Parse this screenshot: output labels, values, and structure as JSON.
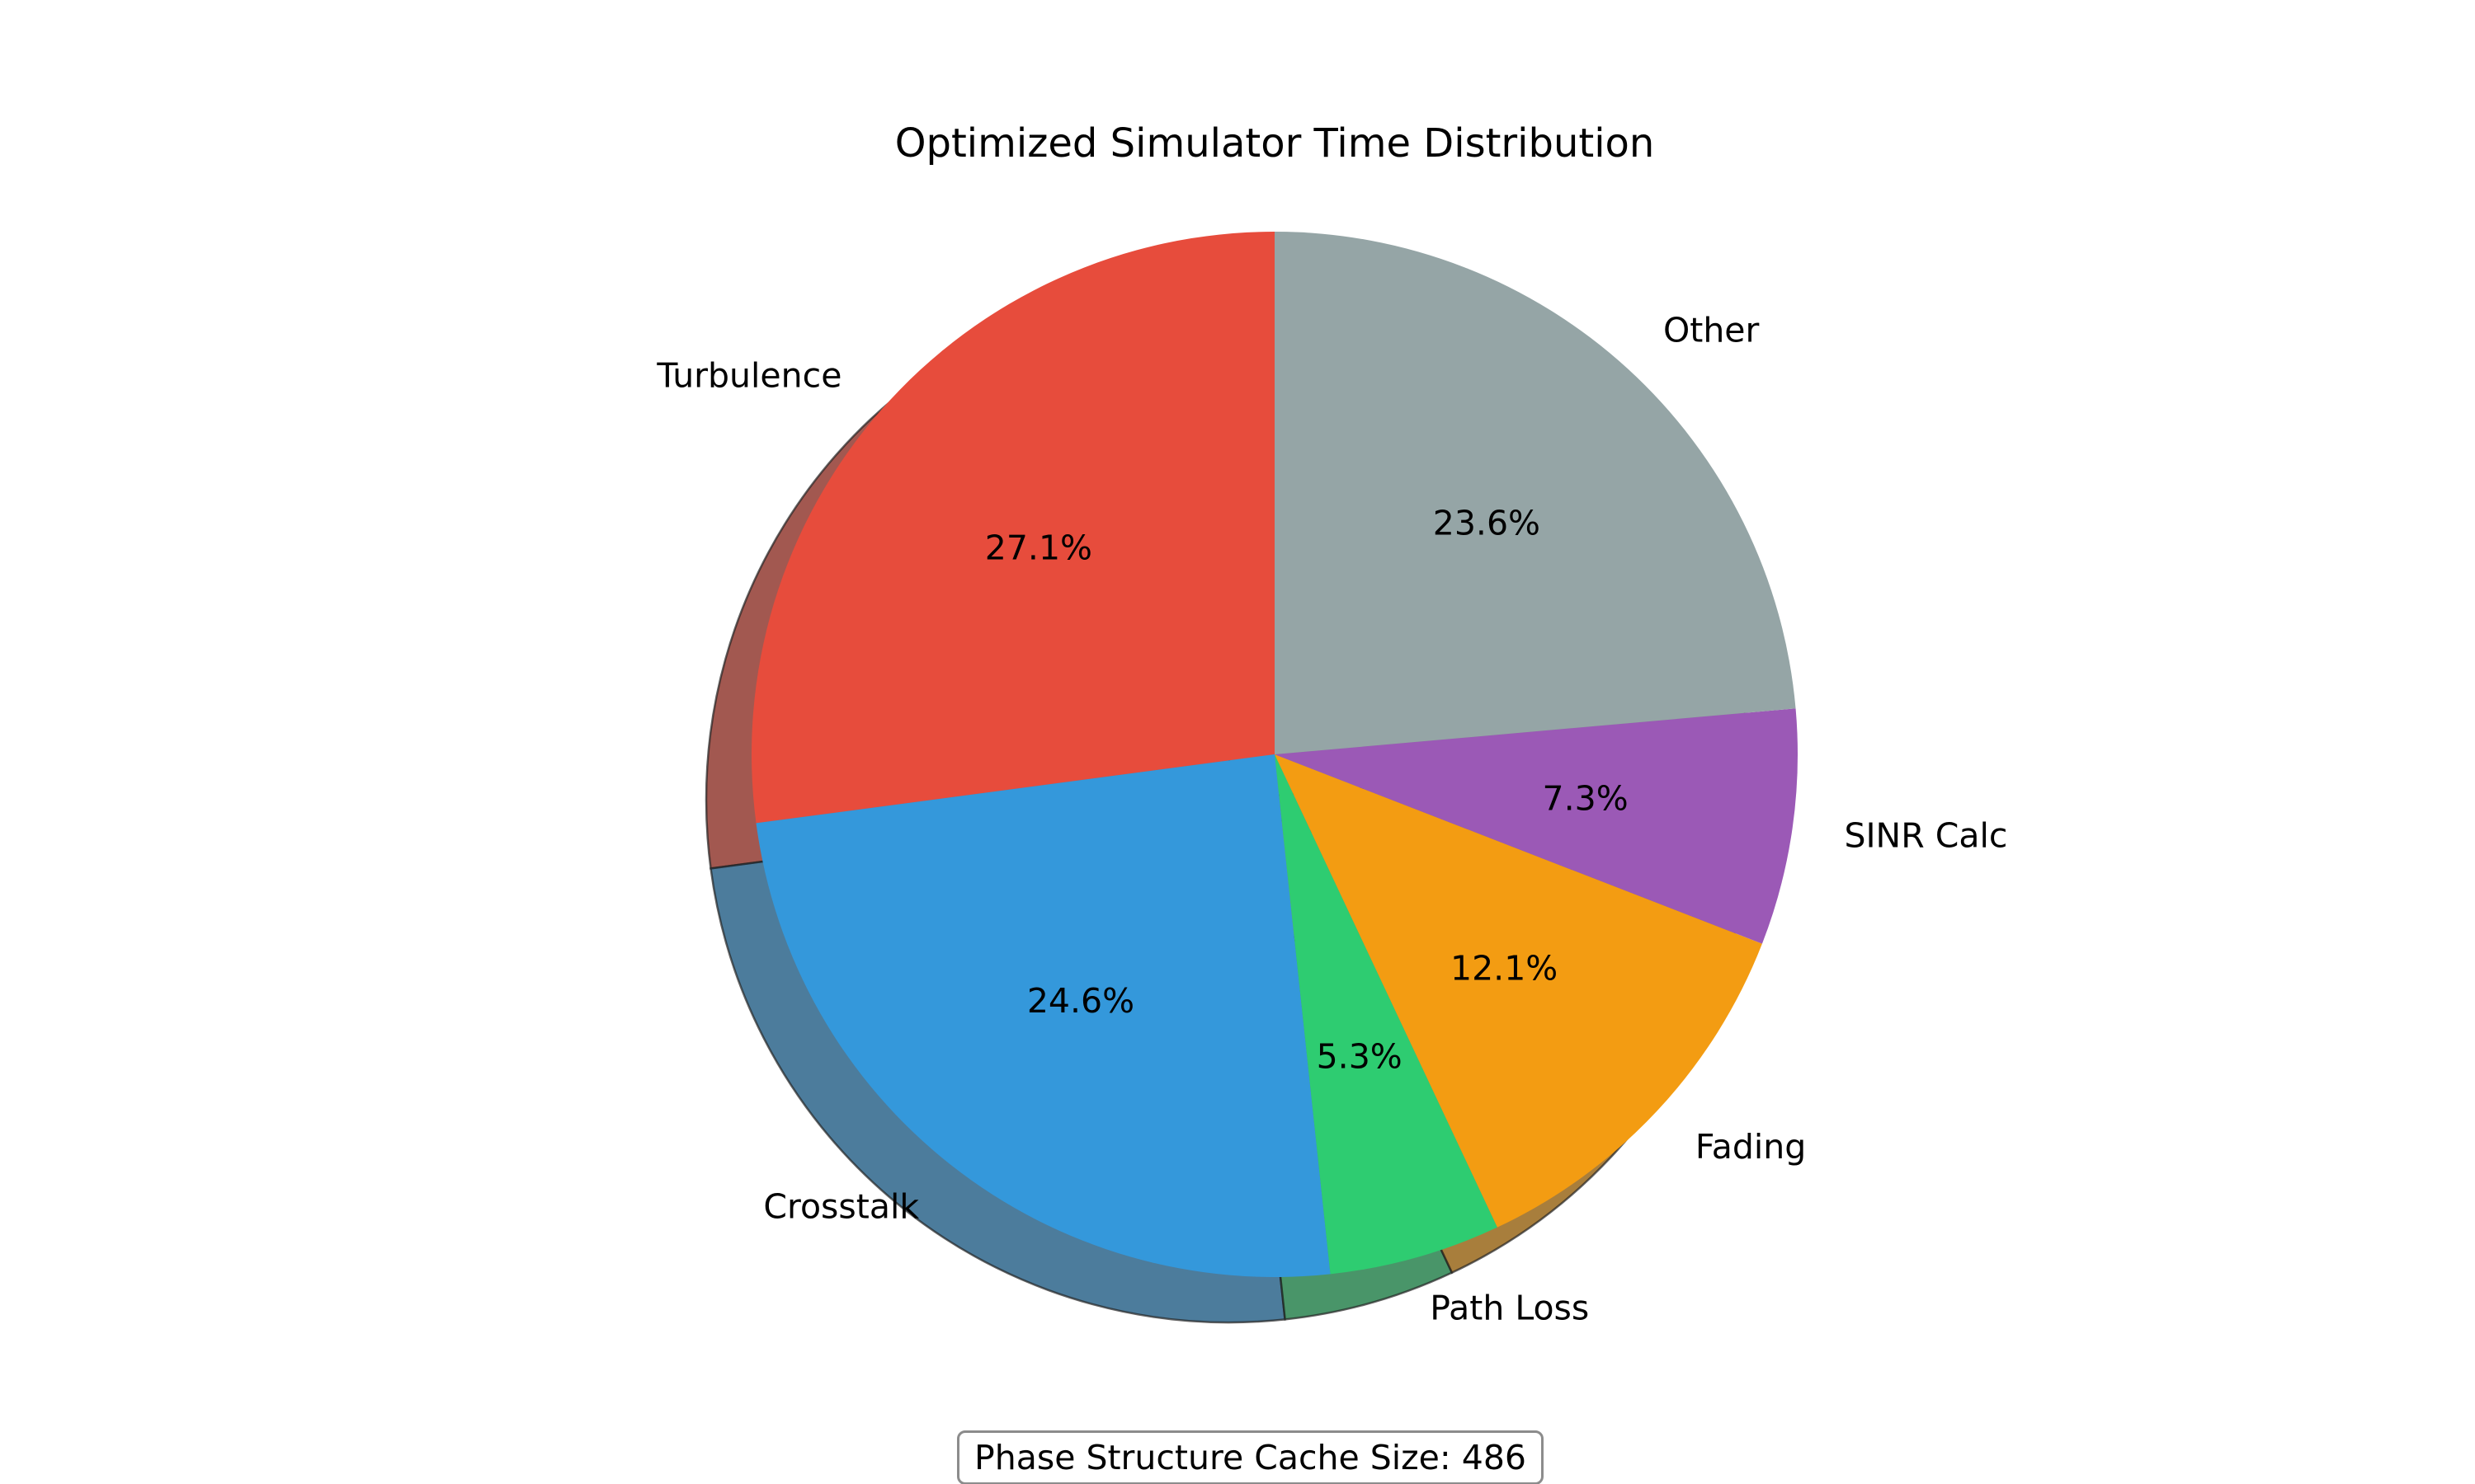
{
  "chart_data": {
    "type": "pie",
    "title": "Optimized Simulator Time Distribution",
    "start_angle_deg": 90,
    "direction": "counterclockwise",
    "shadow": true,
    "slices": [
      {
        "label": "Turbulence",
        "value": 27.1,
        "pct_label": "27.1%",
        "color": "#e74c3c"
      },
      {
        "label": "Crosstalk",
        "value": 24.6,
        "pct_label": "24.6%",
        "color": "#3498db"
      },
      {
        "label": "Path Loss",
        "value": 5.3,
        "pct_label": "5.3%",
        "color": "#2ecc71"
      },
      {
        "label": "Fading",
        "value": 12.1,
        "pct_label": "12.1%",
        "color": "#f39c12"
      },
      {
        "label": "SINR Calc",
        "value": 7.3,
        "pct_label": "7.3%",
        "color": "#9b59b6"
      },
      {
        "label": "Other",
        "value": 23.6,
        "pct_label": "23.6%",
        "color": "#95a5a6"
      }
    ],
    "annotation": "Phase Structure Cache Size: 486"
  }
}
